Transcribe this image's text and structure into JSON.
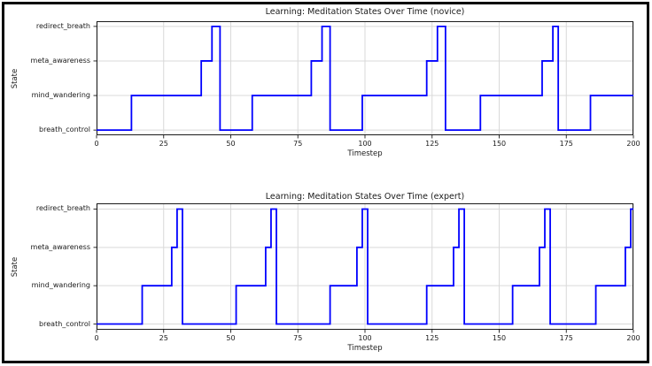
{
  "figure": {
    "background": "#ffffff",
    "border_color": "#000000"
  },
  "chart_data": [
    {
      "type": "line",
      "subtype": "step",
      "title": "Learning: Meditation States Over Time (novice)",
      "xlabel": "Timestep",
      "ylabel": "State",
      "xlim": [
        0,
        200
      ],
      "xticks": [
        0,
        25,
        50,
        75,
        100,
        125,
        150,
        175,
        200
      ],
      "states": [
        "breath_control",
        "mind_wandering",
        "meta_awareness",
        "redirect_breath"
      ],
      "grid": true,
      "legend_position": "none",
      "line_color": "#0000ff",
      "grid_color": "#d9d9d9",
      "steps": [
        [
          0,
          "breath_control"
        ],
        [
          13,
          "mind_wandering"
        ],
        [
          39,
          "meta_awareness"
        ],
        [
          43,
          "redirect_breath"
        ],
        [
          46,
          "breath_control"
        ],
        [
          58,
          "mind_wandering"
        ],
        [
          80,
          "meta_awareness"
        ],
        [
          84,
          "redirect_breath"
        ],
        [
          87,
          "breath_control"
        ],
        [
          99,
          "mind_wandering"
        ],
        [
          123,
          "meta_awareness"
        ],
        [
          127,
          "redirect_breath"
        ],
        [
          130,
          "breath_control"
        ],
        [
          143,
          "mind_wandering"
        ],
        [
          166,
          "meta_awareness"
        ],
        [
          170,
          "redirect_breath"
        ],
        [
          172,
          "breath_control"
        ],
        [
          184,
          "mind_wandering"
        ]
      ],
      "end_x": 200
    },
    {
      "type": "line",
      "subtype": "step",
      "title": "Learning: Meditation States Over Time (expert)",
      "xlabel": "Timestep",
      "ylabel": "State",
      "xlim": [
        0,
        200
      ],
      "xticks": [
        0,
        25,
        50,
        75,
        100,
        125,
        150,
        175,
        200
      ],
      "states": [
        "breath_control",
        "mind_wandering",
        "meta_awareness",
        "redirect_breath"
      ],
      "grid": true,
      "legend_position": "none",
      "line_color": "#0000ff",
      "grid_color": "#d9d9d9",
      "steps": [
        [
          0,
          "breath_control"
        ],
        [
          17,
          "mind_wandering"
        ],
        [
          28,
          "meta_awareness"
        ],
        [
          30,
          "redirect_breath"
        ],
        [
          32,
          "breath_control"
        ],
        [
          52,
          "mind_wandering"
        ],
        [
          63,
          "meta_awareness"
        ],
        [
          65,
          "redirect_breath"
        ],
        [
          67,
          "breath_control"
        ],
        [
          87,
          "mind_wandering"
        ],
        [
          97,
          "meta_awareness"
        ],
        [
          99,
          "redirect_breath"
        ],
        [
          101,
          "breath_control"
        ],
        [
          123,
          "mind_wandering"
        ],
        [
          133,
          "meta_awareness"
        ],
        [
          135,
          "redirect_breath"
        ],
        [
          137,
          "breath_control"
        ],
        [
          155,
          "mind_wandering"
        ],
        [
          165,
          "meta_awareness"
        ],
        [
          167,
          "redirect_breath"
        ],
        [
          169,
          "breath_control"
        ],
        [
          186,
          "mind_wandering"
        ],
        [
          197,
          "meta_awareness"
        ],
        [
          199,
          "redirect_breath"
        ]
      ],
      "end_x": 200
    }
  ]
}
